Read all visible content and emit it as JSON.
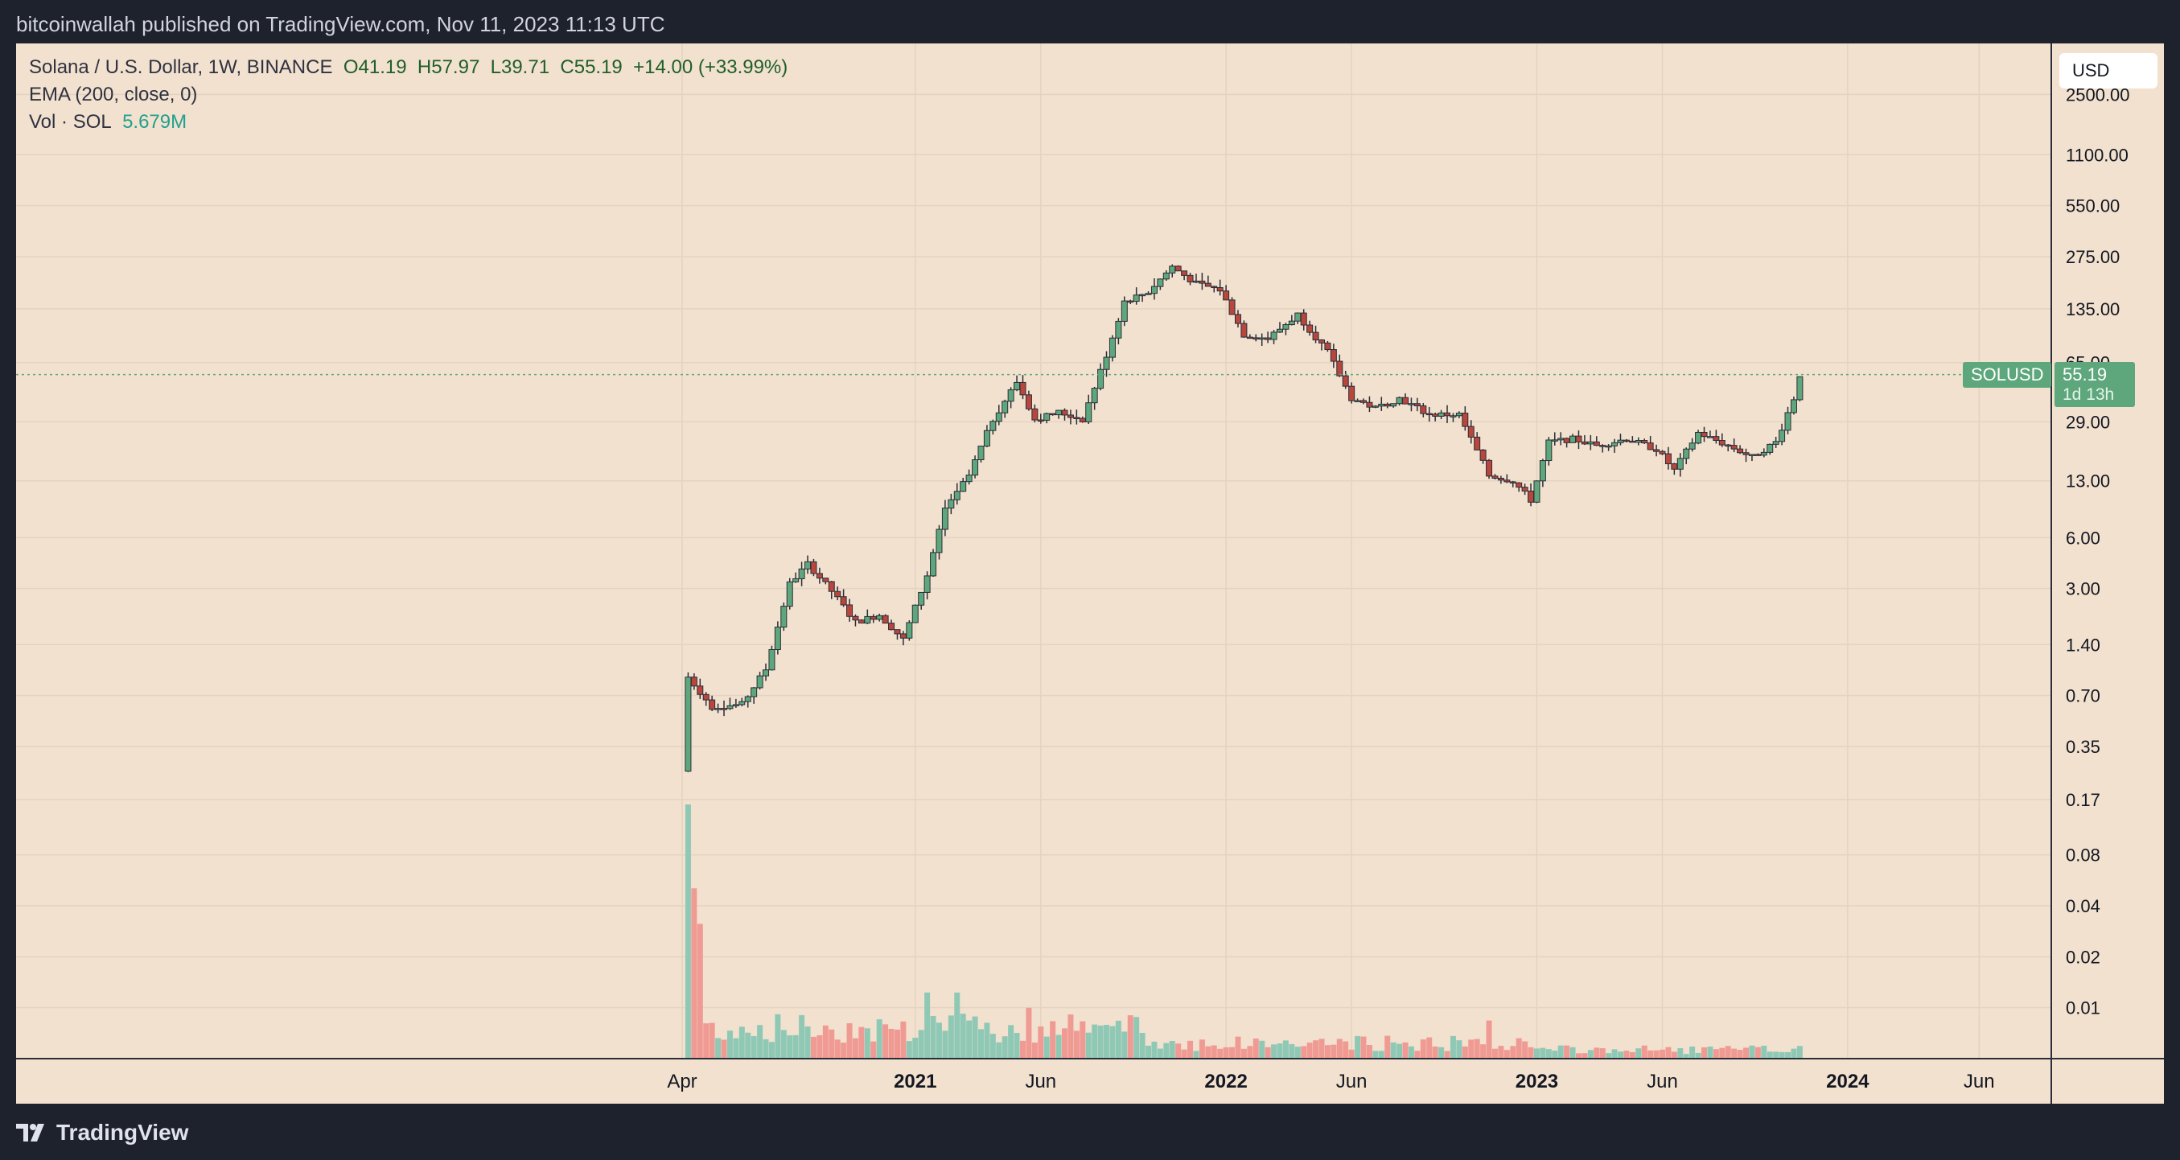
{
  "header": {
    "publish_line": "bitcoinwallah published on TradingView.com, Nov 11, 2023 11:13 UTC"
  },
  "footer": {
    "brand": "TradingView"
  },
  "legend": {
    "symbol_line": "Solana / U.S. Dollar, 1W, BINANCE",
    "open": "O41.19",
    "high": "H57.97",
    "low": "L39.71",
    "close": "C55.19",
    "change": "+14.00 (+33.99%)",
    "ema": "EMA (200, close, 0)",
    "vol_label": "Vol · SOL",
    "vol_value": "5.679M"
  },
  "currency_button": "USD",
  "price_tag": {
    "symbol": "SOLUSD",
    "price": "55.19",
    "countdown": "1d 13h"
  },
  "colors": {
    "background": "#f2e1ce",
    "up": "#5ea77c",
    "down": "#b8463c",
    "vol_up": "#8fc9b6",
    "vol_down": "#f09a94"
  },
  "chart_data": {
    "type": "candlestick",
    "symbol": "SOLUSD",
    "interval": "1W",
    "exchange": "BINANCE",
    "y_scale": "log",
    "ylim": [
      0.005,
      5000
    ],
    "y_ticks": [
      "2500.00",
      "1100.00",
      "550.00",
      "275.00",
      "135.00",
      "65.00",
      "29.00",
      "13.00",
      "6.00",
      "3.00",
      "1.40",
      "0.70",
      "0.35",
      "0.17",
      "0.08",
      "0.04",
      "0.02",
      "0.01"
    ],
    "x_range": [
      "2020-04-06",
      "2024-07-01"
    ],
    "x_ticks": [
      {
        "label": "Apr",
        "date": "2020-04-06",
        "bold": false
      },
      {
        "label": "2021",
        "date": "2021-01-04",
        "bold": true
      },
      {
        "label": "Jun",
        "date": "2021-05-31",
        "bold": false
      },
      {
        "label": "2022",
        "date": "2022-01-03",
        "bold": true
      },
      {
        "label": "Jun",
        "date": "2022-05-30",
        "bold": false
      },
      {
        "label": "2023",
        "date": "2023-01-02",
        "bold": true
      },
      {
        "label": "Jun",
        "date": "2023-05-29",
        "bold": false
      },
      {
        "label": "2024",
        "date": "2024-01-01",
        "bold": true
      },
      {
        "label": "Jun",
        "date": "2024-06-03",
        "bold": false
      }
    ],
    "grid": true,
    "last_price": 55.19,
    "series_close": [
      {
        "date": "2020-04-13",
        "close": 0.9
      },
      {
        "date": "2020-05-11",
        "close": 0.6
      },
      {
        "date": "2020-06-15",
        "close": 0.62
      },
      {
        "date": "2020-07-13",
        "close": 1.0
      },
      {
        "date": "2020-08-10",
        "close": 3.2
      },
      {
        "date": "2020-08-31",
        "close": 4.2
      },
      {
        "date": "2020-09-28",
        "close": 2.9
      },
      {
        "date": "2020-10-26",
        "close": 1.9
      },
      {
        "date": "2020-11-23",
        "close": 2.1
      },
      {
        "date": "2020-12-21",
        "close": 1.5
      },
      {
        "date": "2021-01-18",
        "close": 3.6
      },
      {
        "date": "2021-02-08",
        "close": 9
      },
      {
        "date": "2021-03-08",
        "close": 14
      },
      {
        "date": "2021-04-05",
        "close": 30
      },
      {
        "date": "2021-05-03",
        "close": 50
      },
      {
        "date": "2021-05-24",
        "close": 30
      },
      {
        "date": "2021-06-21",
        "close": 33
      },
      {
        "date": "2021-07-19",
        "close": 30
      },
      {
        "date": "2021-08-16",
        "close": 72
      },
      {
        "date": "2021-09-06",
        "close": 150
      },
      {
        "date": "2021-10-04",
        "close": 170
      },
      {
        "date": "2021-11-01",
        "close": 240
      },
      {
        "date": "2021-11-29",
        "close": 190
      },
      {
        "date": "2021-12-27",
        "close": 175
      },
      {
        "date": "2022-01-24",
        "close": 95
      },
      {
        "date": "2022-02-21",
        "close": 90
      },
      {
        "date": "2022-03-28",
        "close": 125
      },
      {
        "date": "2022-05-02",
        "close": 75
      },
      {
        "date": "2022-05-30",
        "close": 40
      },
      {
        "date": "2022-06-27",
        "close": 35
      },
      {
        "date": "2022-07-25",
        "close": 40
      },
      {
        "date": "2022-08-29",
        "close": 32
      },
      {
        "date": "2022-10-03",
        "close": 32
      },
      {
        "date": "2022-11-07",
        "close": 14
      },
      {
        "date": "2022-12-05",
        "close": 13
      },
      {
        "date": "2022-12-26",
        "close": 10
      },
      {
        "date": "2023-01-16",
        "close": 22
      },
      {
        "date": "2023-02-13",
        "close": 23
      },
      {
        "date": "2023-03-13",
        "close": 21
      },
      {
        "date": "2023-04-17",
        "close": 23
      },
      {
        "date": "2023-05-22",
        "close": 20
      },
      {
        "date": "2023-06-12",
        "close": 15
      },
      {
        "date": "2023-07-10",
        "close": 25
      },
      {
        "date": "2023-08-14",
        "close": 21
      },
      {
        "date": "2023-09-11",
        "close": 18
      },
      {
        "date": "2023-10-09",
        "close": 22
      },
      {
        "date": "2023-10-30",
        "close": 40
      },
      {
        "date": "2023-11-06",
        "close": 55.19
      }
    ],
    "volume_highlights": [
      {
        "date": "2020-04-13",
        "level": 1.0,
        "up": true
      },
      {
        "date": "2020-04-20",
        "level": 0.67,
        "up": false
      },
      {
        "date": "2020-04-27",
        "level": 0.53,
        "up": false
      },
      {
        "date": "2021-01-18",
        "level": 0.26,
        "up": true
      },
      {
        "date": "2021-02-22",
        "level": 0.26,
        "up": true
      },
      {
        "date": "2021-05-17",
        "level": 0.2,
        "up": false
      },
      {
        "date": "2022-11-07",
        "level": 0.15,
        "up": false
      },
      {
        "date": "2023-11-06",
        "level": 0.05,
        "up": true
      }
    ]
  }
}
